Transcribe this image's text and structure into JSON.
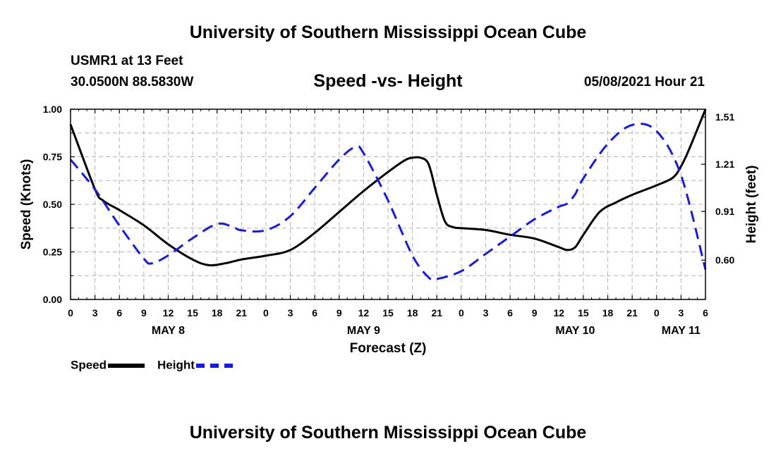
{
  "header": {
    "title": "University of Southern Mississippi Ocean Cube",
    "station": "USMR1 at 13 Feet",
    "coords": "30.0500N  88.5830W",
    "datetime": "05/08/2021 Hour 21"
  },
  "footer": {
    "title": "University of Southern Mississippi Ocean Cube"
  },
  "legend": {
    "speed_label": "Speed",
    "height_label": "Height"
  },
  "colors": {
    "speed": "#000000",
    "height": "#1a1adc",
    "grid": "#b4b4b4"
  },
  "chart_data": {
    "type": "line",
    "title": "Speed -vs- Height",
    "xlabel": "Forecast (Z)",
    "ylabel_left": "Speed (Knots)",
    "ylabel_right": "Height (feet)",
    "x_unit": "hours from May 8 00Z",
    "xlim": [
      0,
      78
    ],
    "ylim_left": [
      0,
      1.0
    ],
    "ylim_right": [
      0.35,
      1.56
    ],
    "yticks_left": [
      "0.00",
      "0.25",
      "0.50",
      "0.75",
      "1.00"
    ],
    "yticks_left_values": [
      0,
      0.25,
      0.5,
      0.75,
      1.0
    ],
    "yticks_right": [
      "0.60",
      "0.91",
      "1.21",
      "1.51"
    ],
    "yticks_right_values": [
      0.6,
      0.91,
      1.21,
      1.51
    ],
    "xtick_hours": [
      0,
      3,
      6,
      9,
      12,
      15,
      18,
      21,
      24,
      27,
      30,
      33,
      36,
      39,
      42,
      45,
      48,
      51,
      54,
      57,
      60,
      63,
      66,
      69,
      72,
      75,
      78
    ],
    "xtick_labels": [
      "0",
      "3",
      "6",
      "9",
      "12",
      "15",
      "18",
      "21",
      "0",
      "3",
      "6",
      "9",
      "12",
      "15",
      "18",
      "21",
      "0",
      "3",
      "6",
      "9",
      "12",
      "15",
      "18",
      "21",
      "0",
      "3",
      "6"
    ],
    "day_labels": [
      {
        "label": "MAY 8",
        "hour": 12
      },
      {
        "label": "MAY 9",
        "hour": 36
      },
      {
        "label": "MAY 10",
        "hour": 62
      },
      {
        "label": "MAY 11",
        "hour": 75
      }
    ],
    "grid": true,
    "legend_position": "bottom-left",
    "series": [
      {
        "name": "Speed",
        "axis": "left",
        "style": "solid",
        "x": [
          0,
          3,
          4,
          6,
          9,
          12,
          15,
          17,
          19,
          21,
          24,
          27,
          30,
          33,
          36,
          39,
          41,
          42,
          43,
          44,
          45,
          46,
          47,
          48,
          51,
          54,
          57,
          60,
          61,
          62,
          63,
          65,
          67,
          69,
          72,
          74,
          75,
          76,
          78
        ],
        "values": [
          0.92,
          0.58,
          0.52,
          0.47,
          0.39,
          0.29,
          0.21,
          0.18,
          0.19,
          0.21,
          0.23,
          0.26,
          0.35,
          0.46,
          0.57,
          0.67,
          0.73,
          0.745,
          0.745,
          0.71,
          0.55,
          0.41,
          0.38,
          0.375,
          0.365,
          0.34,
          0.32,
          0.275,
          0.26,
          0.275,
          0.34,
          0.46,
          0.51,
          0.55,
          0.6,
          0.64,
          0.7,
          0.79,
          1.0
        ]
      },
      {
        "name": "Height",
        "axis": "right",
        "style": "dashed",
        "x": [
          0,
          3,
          6,
          9,
          10,
          12,
          15,
          18,
          20,
          21,
          24,
          27,
          30,
          33,
          35,
          36,
          39,
          42,
          44,
          45,
          48,
          51,
          54,
          57,
          60,
          61,
          62,
          63,
          66,
          69,
          72,
          75,
          78
        ],
        "values": [
          1.24,
          1.05,
          0.82,
          0.61,
          0.58,
          0.63,
          0.74,
          0.83,
          0.81,
          0.79,
          0.79,
          0.88,
          1.06,
          1.24,
          1.32,
          1.28,
          0.98,
          0.63,
          0.49,
          0.48,
          0.53,
          0.64,
          0.75,
          0.86,
          0.94,
          0.96,
          1.02,
          1.12,
          1.34,
          1.46,
          1.42,
          1.14,
          0.54
        ]
      }
    ]
  }
}
